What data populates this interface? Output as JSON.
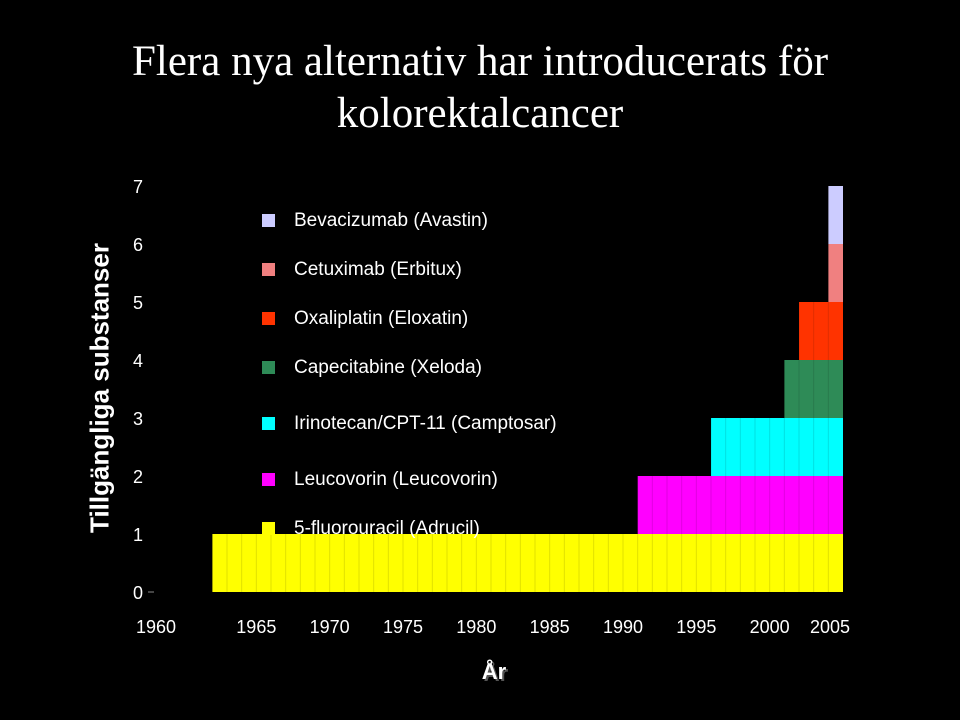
{
  "title_line1": "Flera nya alternativ har introducerats för",
  "title_line2": "kolorektalcancer",
  "chart_data": {
    "type": "bar",
    "subtype": "stacked step bars by year",
    "ylabel": "Tillgängliga substanser",
    "xlabel": "År",
    "xlim": [
      1960,
      2005
    ],
    "ylim": [
      0,
      7
    ],
    "xticks": [
      "1960",
      "1965",
      "1970",
      "1975",
      "1980",
      "1985",
      "1990",
      "1995",
      "2000",
      "2005"
    ],
    "yticks": [
      "0",
      "1",
      "2",
      "3",
      "4",
      "5",
      "6",
      "7"
    ],
    "grid": false,
    "legend_placement": "top-left inside plot",
    "series": [
      {
        "name": "Bevacizumab (Avastin)",
        "level": 7,
        "start_year": 2004,
        "color": "#CCCCFF"
      },
      {
        "name": "Cetuximab (Erbitux)",
        "level": 6,
        "start_year": 2004,
        "color": "#F08080"
      },
      {
        "name": "Oxaliplatin (Eloxatin)",
        "level": 5,
        "start_year": 2002,
        "color": "#FF3300"
      },
      {
        "name": "Capecitabine (Xeloda)",
        "level": 4,
        "start_year": 2001,
        "color": "#2E8B57"
      },
      {
        "name": "Irinotecan/CPT-11 (Camptosar)",
        "level": 3,
        "start_year": 1996,
        "color": "#00FFFF"
      },
      {
        "name": "Leucovorin (Leucovorin)",
        "level": 2,
        "start_year": 1991,
        "color": "#FF00FF"
      },
      {
        "name": "5-fluorouracil (Adrucil)",
        "level": 1,
        "start_year": 1962,
        "color": "#FFFF00"
      }
    ]
  }
}
